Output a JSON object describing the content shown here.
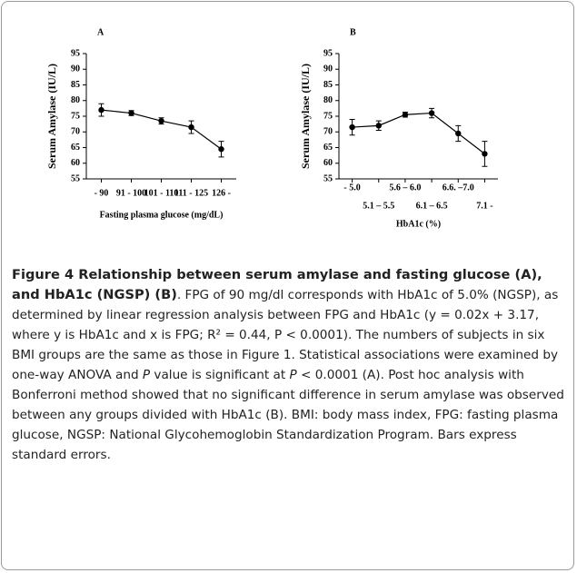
{
  "chart_data": [
    {
      "type": "line",
      "panel": "A",
      "y_label": "Serum Amylase (IU/L)",
      "x_label": "Fasting plasma glucose (mg/dL)",
      "categories": [
        "- 90",
        "91 - 100",
        "101 - 110",
        "111 - 125",
        "126 -"
      ],
      "values": [
        77,
        76,
        73.5,
        71.5,
        64.5
      ],
      "errors": [
        2,
        0.8,
        1,
        2,
        2.5
      ],
      "color": "#000000",
      "ylim": [
        55,
        95
      ],
      "yticks": [
        55,
        60,
        65,
        70,
        75,
        80,
        85,
        90,
        95
      ],
      "staggered_labels": false
    },
    {
      "type": "line",
      "panel": "B",
      "y_label": "Serum Amylase (IU/L)",
      "x_label": "HbA1c (%)",
      "categories": [
        "- 5.0",
        "5.1 – 5.5",
        "5.6 – 6.0",
        "6.1 – 6.5",
        "6.6. –7.0",
        "7.1 -"
      ],
      "values": [
        71.5,
        72,
        75.5,
        76,
        69.5,
        63
      ],
      "errors": [
        2.5,
        1.5,
        0.8,
        1.5,
        2.5,
        4
      ],
      "color": "#000000",
      "ylim": [
        55,
        95
      ],
      "yticks": [
        55,
        60,
        65,
        70,
        75,
        80,
        85,
        90,
        95
      ],
      "staggered_labels": true
    }
  ],
  "caption": {
    "title": "Figure 4 Relationship between serum amylase and fasting glucose (A), and HbA1c (NGSP) (B)",
    "segments": [
      {
        "text": ". FPG of 90 mg/dl corresponds with HbA1c of 5.0% (NGSP), as determined by linear regression analysis between FPG and HbA1c (y = 0.02x + 3.17, where y is HbA1c and x is FPG; R² = 0.44, P < 0.0001). The numbers of subjects in six BMI groups are the same as those in Figure 1. Statistical associations were examined by one-way ANOVA and "
      },
      {
        "text": "P",
        "italic": true
      },
      {
        "text": " value is significant at "
      },
      {
        "text": "P",
        "italic": true
      },
      {
        "text": " < 0.0001 (A). Post hoc analysis with Bonferroni method showed that no significant difference in serum amylase was observed between any groups divided with HbA1c (B). BMI: body mass index, FPG: fasting plasma glucose, NGSP: National Glycohemoglobin Standardization Program. Bars express standard errors."
      }
    ]
  }
}
